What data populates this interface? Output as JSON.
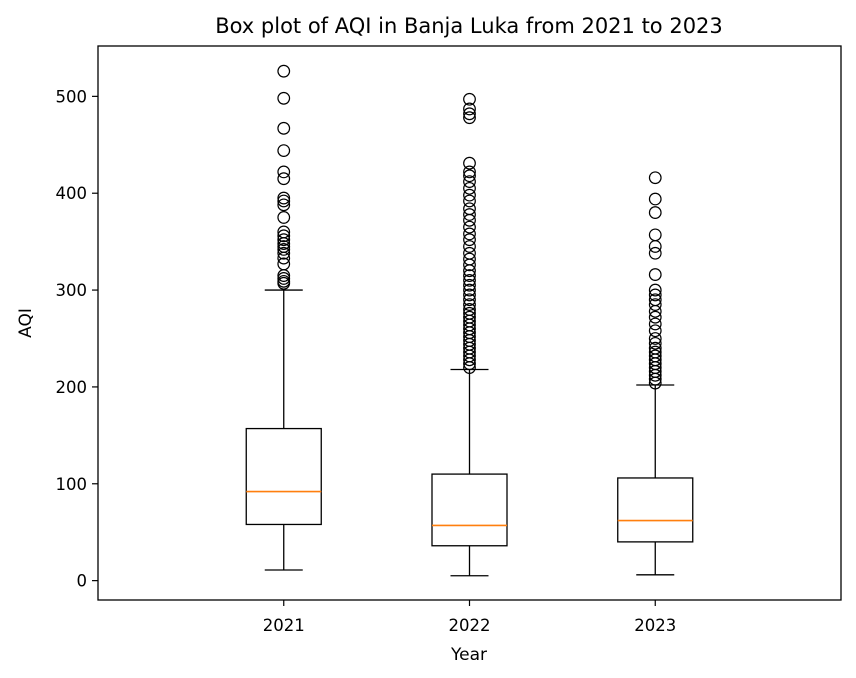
{
  "chart_data": {
    "type": "box",
    "title": "Box plot of AQI in Banja Luka from 2021 to 2023",
    "xlabel": "Year",
    "ylabel": "AQI",
    "ylim": [
      -20,
      552
    ],
    "yticks": [
      0,
      100,
      200,
      300,
      400,
      500
    ],
    "grid": false,
    "categories": [
      "2021",
      "2022",
      "2023"
    ],
    "boxes": [
      {
        "category": "2021",
        "whisker_low": 11,
        "q1": 58,
        "median": 92,
        "q3": 157,
        "whisker_high": 300,
        "outliers": [
          307,
          309,
          312,
          315,
          327,
          333,
          338,
          342,
          345,
          348,
          352,
          356,
          360,
          375,
          388,
          392,
          395,
          415,
          422,
          444,
          467,
          498,
          526
        ]
      },
      {
        "category": "2022",
        "whisker_low": 5,
        "q1": 36,
        "median": 57,
        "q3": 110,
        "whisker_high": 218,
        "outliers": [
          220,
          224,
          228,
          232,
          236,
          240,
          244,
          248,
          252,
          256,
          260,
          264,
          268,
          272,
          276,
          280,
          285,
          290,
          295,
          300,
          305,
          310,
          315,
          320,
          326,
          332,
          338,
          345,
          352,
          358,
          365,
          372,
          378,
          384,
          392,
          398,
          405,
          412,
          418,
          422,
          431,
          478,
          482,
          487,
          497
        ]
      },
      {
        "category": "2023",
        "whisker_low": 6,
        "q1": 40,
        "median": 62,
        "q3": 106,
        "whisker_high": 202,
        "outliers": [
          204,
          208,
          212,
          216,
          220,
          224,
          228,
          232,
          236,
          240,
          245,
          250,
          258,
          265,
          272,
          278,
          285,
          290,
          295,
          300,
          316,
          338,
          345,
          357,
          380,
          394,
          416
        ]
      }
    ],
    "colors": {
      "box": "#000000",
      "median": "#ff7f0e",
      "outlier_edge": "#000000"
    }
  }
}
